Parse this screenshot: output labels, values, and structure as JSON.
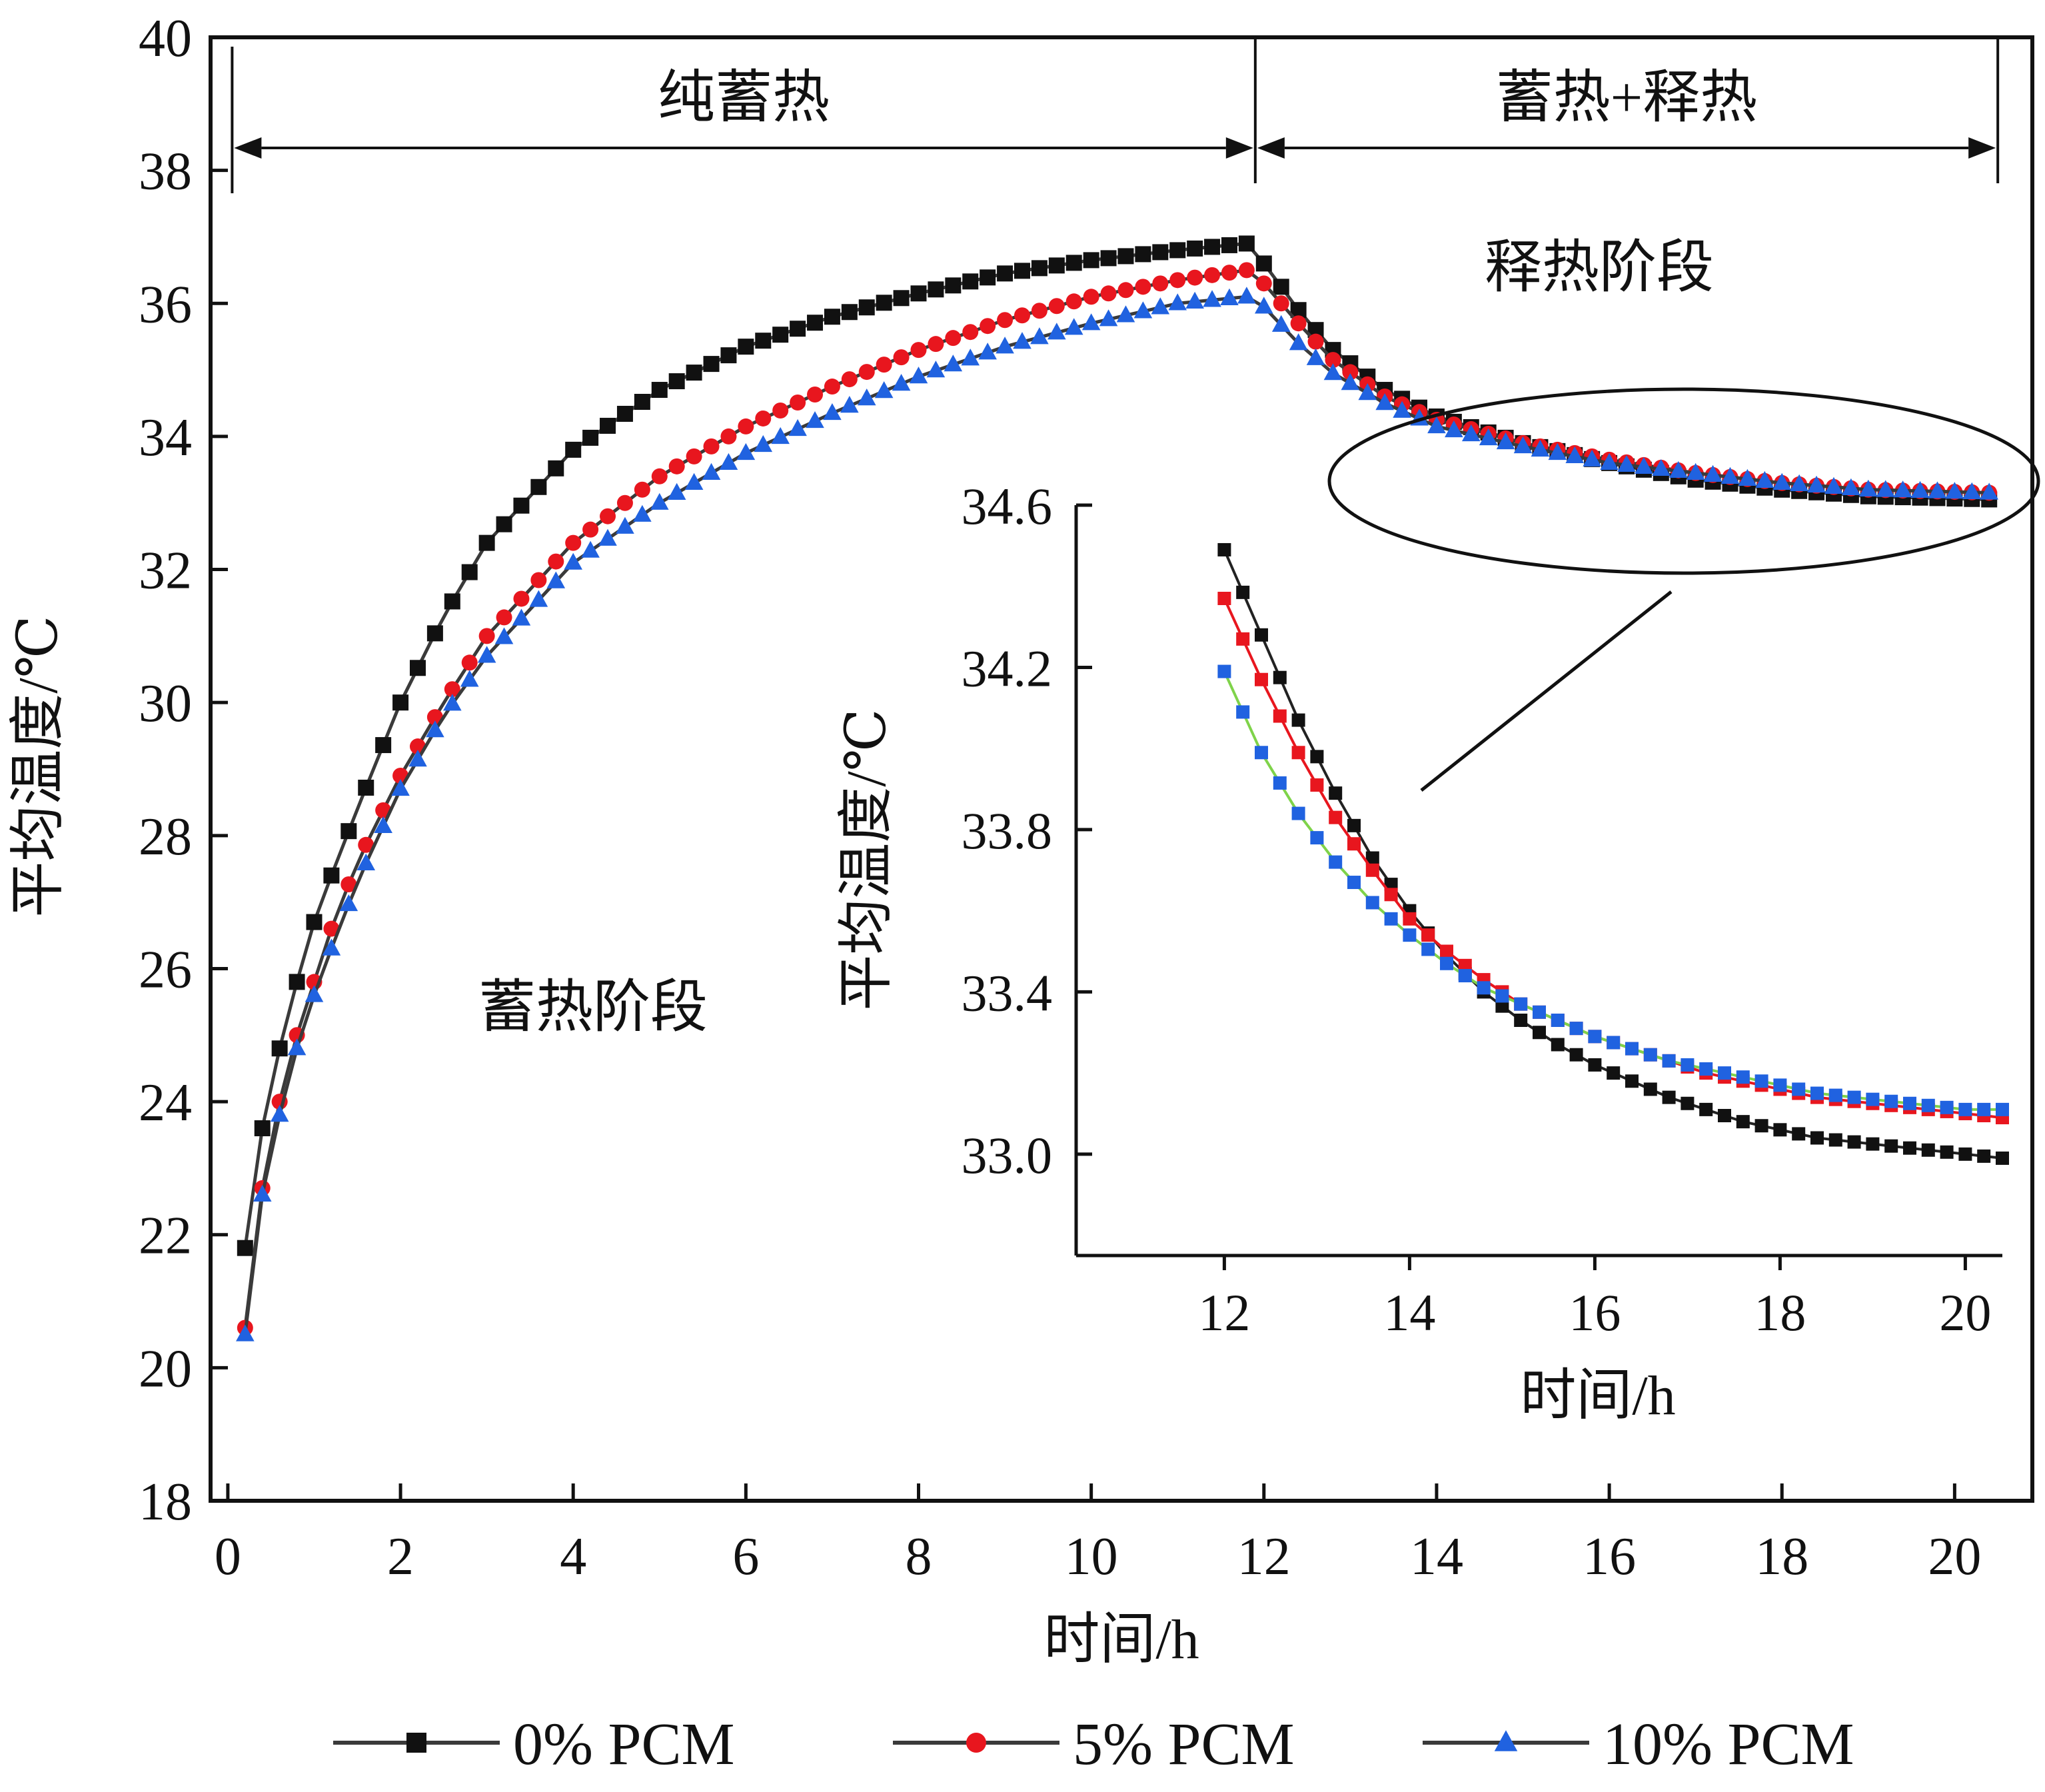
{
  "chart_data": [
    {
      "type": "line",
      "xlabel": "时间/h",
      "ylabel": "平均温度/℃",
      "xlim": [
        -0.2,
        20.9
      ],
      "ylim": [
        18,
        40
      ],
      "xticks": [
        0,
        2,
        4,
        6,
        8,
        10,
        12,
        14,
        16,
        18,
        20
      ],
      "yticks": [
        18,
        20,
        22,
        24,
        26,
        28,
        30,
        32,
        34,
        36,
        38,
        40
      ],
      "grid": false,
      "legend_position": "bottom",
      "annotations": {
        "phase_pure": "纯蓄热",
        "phase_mixed": "蓄热+释热",
        "storage_stage": "蓄热阶段",
        "release_stage": "释热阶段"
      },
      "phase_breaks": [
        0.05,
        11.9,
        20.5
      ],
      "x_step": 0.2,
      "series": [
        {
          "name": "0% PCM",
          "color": "#111111",
          "marker": "square",
          "anchors": [
            [
              0.2,
              21.8
            ],
            [
              0.4,
              23.6
            ],
            [
              0.6,
              24.8
            ],
            [
              0.8,
              25.8
            ],
            [
              1,
              26.7
            ],
            [
              1.2,
              27.4
            ],
            [
              1.5,
              28.4
            ],
            [
              2,
              30.0
            ],
            [
              2.5,
              31.3
            ],
            [
              3,
              32.4
            ],
            [
              4,
              33.8
            ],
            [
              5,
              34.7
            ],
            [
              6,
              35.35
            ],
            [
              7,
              35.8
            ],
            [
              8,
              36.15
            ],
            [
              9,
              36.45
            ],
            [
              10,
              36.65
            ],
            [
              11,
              36.8
            ],
            [
              11.8,
              36.9
            ],
            [
              12,
              36.6
            ],
            [
              12.4,
              35.9
            ],
            [
              12.8,
              35.3
            ],
            [
              13.4,
              34.7
            ],
            [
              14,
              34.3
            ],
            [
              15,
              33.9
            ],
            [
              16,
              33.6
            ],
            [
              17,
              33.35
            ],
            [
              18,
              33.2
            ],
            [
              19,
              33.1
            ],
            [
              20.5,
              33.05
            ]
          ]
        },
        {
          "name": "5% PCM",
          "color": "#e8161e",
          "marker": "circle",
          "anchors": [
            [
              0.2,
              20.6
            ],
            [
              0.4,
              22.7
            ],
            [
              0.6,
              24.0
            ],
            [
              0.8,
              25.0
            ],
            [
              1,
              25.8
            ],
            [
              1.2,
              26.6
            ],
            [
              1.5,
              27.6
            ],
            [
              2,
              28.9
            ],
            [
              2.5,
              30.0
            ],
            [
              3,
              31.0
            ],
            [
              4,
              32.4
            ],
            [
              5,
              33.4
            ],
            [
              6,
              34.15
            ],
            [
              7,
              34.75
            ],
            [
              8,
              35.3
            ],
            [
              9,
              35.75
            ],
            [
              10,
              36.1
            ],
            [
              11,
              36.35
            ],
            [
              11.8,
              36.5
            ],
            [
              12,
              36.3
            ],
            [
              12.4,
              35.7
            ],
            [
              12.8,
              35.15
            ],
            [
              13.4,
              34.6
            ],
            [
              14,
              34.25
            ],
            [
              15,
              33.9
            ],
            [
              16,
              33.65
            ],
            [
              17,
              33.45
            ],
            [
              18,
              33.3
            ],
            [
              19,
              33.2
            ],
            [
              20.5,
              33.15
            ]
          ]
        },
        {
          "name": "10% PCM",
          "color": "#2062e0",
          "marker": "triangle",
          "anchors": [
            [
              0.2,
              20.5
            ],
            [
              0.4,
              22.6
            ],
            [
              0.6,
              23.8
            ],
            [
              0.8,
              24.8
            ],
            [
              1,
              25.6
            ],
            [
              1.2,
              26.3
            ],
            [
              1.5,
              27.3
            ],
            [
              2,
              28.7
            ],
            [
              2.5,
              29.8
            ],
            [
              3,
              30.7
            ],
            [
              4,
              32.1
            ],
            [
              5,
              33.0
            ],
            [
              6,
              33.75
            ],
            [
              7,
              34.35
            ],
            [
              8,
              34.9
            ],
            [
              9,
              35.35
            ],
            [
              10,
              35.7
            ],
            [
              11,
              36.0
            ],
            [
              11.8,
              36.1
            ],
            [
              12,
              35.95
            ],
            [
              12.4,
              35.4
            ],
            [
              12.8,
              34.95
            ],
            [
              13.4,
              34.5
            ],
            [
              14,
              34.15
            ],
            [
              15,
              33.85
            ],
            [
              16,
              33.6
            ],
            [
              17,
              33.45
            ],
            [
              18,
              33.3
            ],
            [
              19,
              33.2
            ],
            [
              20.5,
              33.15
            ]
          ]
        }
      ]
    },
    {
      "type": "line",
      "inset": true,
      "xlabel": "时间/h",
      "ylabel": "平均温度/℃",
      "xlim": [
        10.4,
        20.4
      ],
      "ylim": [
        32.75,
        34.6
      ],
      "xticks": [
        12,
        14,
        16,
        18,
        20
      ],
      "yticks": [
        33.0,
        33.4,
        33.8,
        34.2,
        34.6
      ],
      "ytick_labels": [
        "33.0",
        "33.4",
        "33.8",
        "34.2",
        "34.6"
      ],
      "grid": false,
      "x_step": 0.2,
      "series": [
        {
          "name": "0% PCM",
          "color": "#111111",
          "line_color": "#222222",
          "marker": "square",
          "anchors": [
            [
              12,
              34.49
            ],
            [
              12.4,
              34.28
            ],
            [
              12.8,
              34.07
            ],
            [
              13.2,
              33.89
            ],
            [
              13.6,
              33.73
            ],
            [
              14,
              33.6
            ],
            [
              14.4,
              33.49
            ],
            [
              14.8,
              33.4
            ],
            [
              15.2,
              33.33
            ],
            [
              15.6,
              33.27
            ],
            [
              16,
              33.22
            ],
            [
              16.4,
              33.18
            ],
            [
              16.8,
              33.14
            ],
            [
              17.2,
              33.11
            ],
            [
              17.6,
              33.08
            ],
            [
              18,
              33.06
            ],
            [
              18.4,
              33.04
            ],
            [
              18.8,
              33.03
            ],
            [
              19.2,
              33.02
            ],
            [
              19.6,
              33.01
            ],
            [
              20,
              33.0
            ],
            [
              20.4,
              32.99
            ]
          ]
        },
        {
          "name": "5% PCM",
          "color": "#e8161e",
          "line_color": "#e8161e",
          "marker": "square",
          "anchors": [
            [
              12,
              34.37
            ],
            [
              12.4,
              34.17
            ],
            [
              12.8,
              33.99
            ],
            [
              13.2,
              33.83
            ],
            [
              13.6,
              33.7
            ],
            [
              14,
              33.58
            ],
            [
              14.4,
              33.5
            ],
            [
              14.8,
              33.43
            ],
            [
              15.2,
              33.37
            ],
            [
              15.6,
              33.33
            ],
            [
              16,
              33.29
            ],
            [
              16.4,
              33.26
            ],
            [
              16.8,
              33.23
            ],
            [
              17.2,
              33.2
            ],
            [
              17.6,
              33.18
            ],
            [
              18,
              33.16
            ],
            [
              18.4,
              33.14
            ],
            [
              18.8,
              33.13
            ],
            [
              19.2,
              33.12
            ],
            [
              19.6,
              33.11
            ],
            [
              20,
              33.1
            ],
            [
              20.4,
              33.09
            ]
          ]
        },
        {
          "name": "10% PCM",
          "color": "#2062e0",
          "line_color": "#7fd34a",
          "marker": "square",
          "anchors": [
            [
              12,
              34.19
            ],
            [
              12.4,
              33.99
            ],
            [
              12.8,
              33.84
            ],
            [
              13.2,
              33.72
            ],
            [
              13.6,
              33.62
            ],
            [
              14,
              33.54
            ],
            [
              14.4,
              33.47
            ],
            [
              14.8,
              33.41
            ],
            [
              15.2,
              33.37
            ],
            [
              15.6,
              33.33
            ],
            [
              16,
              33.29
            ],
            [
              16.4,
              33.26
            ],
            [
              16.8,
              33.23
            ],
            [
              17.2,
              33.21
            ],
            [
              17.6,
              33.19
            ],
            [
              18,
              33.17
            ],
            [
              18.4,
              33.15
            ],
            [
              18.8,
              33.14
            ],
            [
              19.2,
              33.13
            ],
            [
              19.6,
              33.12
            ],
            [
              20,
              33.11
            ],
            [
              20.4,
              33.11
            ]
          ]
        }
      ]
    }
  ]
}
